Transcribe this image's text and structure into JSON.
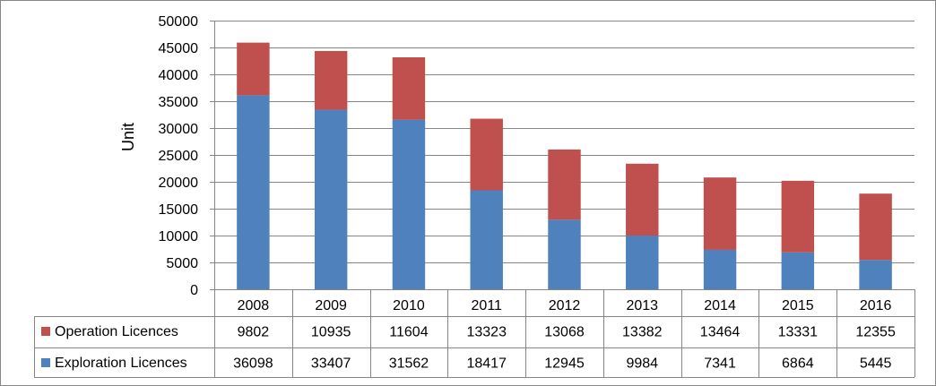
{
  "chart_data": {
    "type": "bar",
    "stacked": true,
    "title": "",
    "xlabel": "",
    "ylabel": "Unit",
    "ylim": [
      0,
      50000
    ],
    "yticks": [
      0,
      5000,
      10000,
      15000,
      20000,
      25000,
      30000,
      35000,
      40000,
      45000,
      50000
    ],
    "categories": [
      "2008",
      "2009",
      "2010",
      "2011",
      "2012",
      "2013",
      "2014",
      "2015",
      "2016"
    ],
    "series": [
      {
        "name": "Operation Licences",
        "color": "#c0504d",
        "values": [
          9802,
          10935,
          11604,
          13323,
          13068,
          13382,
          13464,
          13331,
          12355
        ]
      },
      {
        "name": "Exploration Licences",
        "color": "#4f81bd",
        "values": [
          36098,
          33407,
          31562,
          18417,
          12945,
          9984,
          7341,
          6864,
          5445
        ]
      }
    ],
    "grid": true,
    "data_table": true,
    "colors": {
      "gridline": "#868686",
      "border": "#868686"
    }
  }
}
